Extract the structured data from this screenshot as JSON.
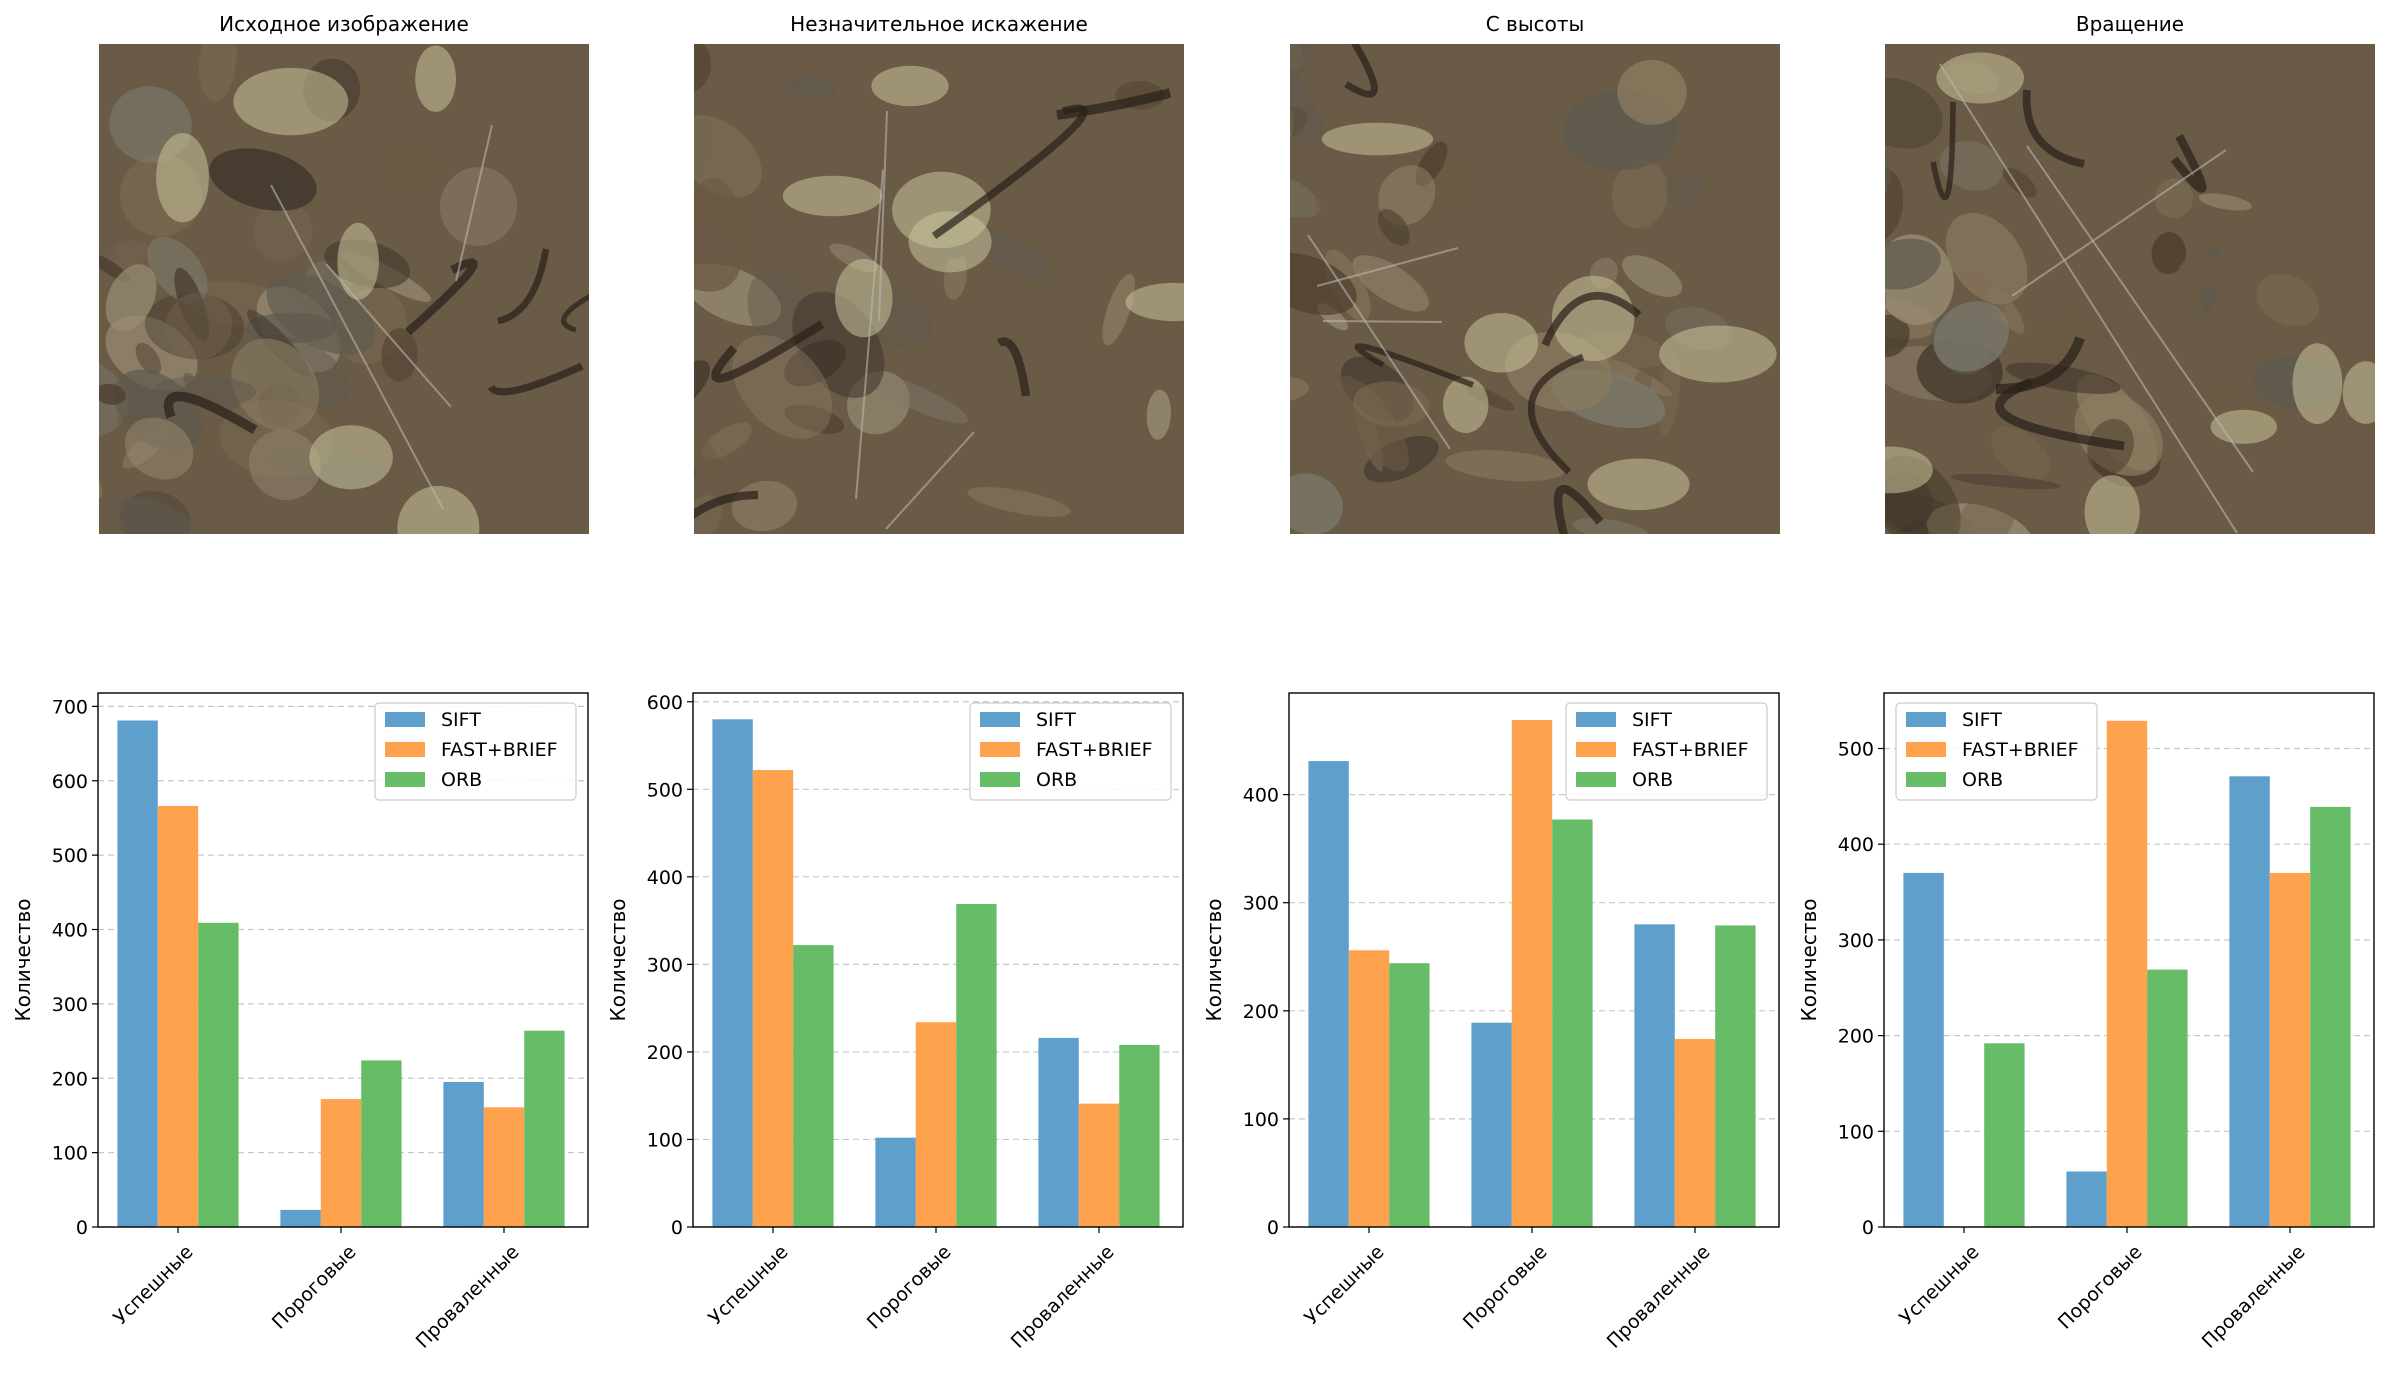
{
  "panels": [
    {
      "title": "Исходное изображение",
      "image": "satellite-original"
    },
    {
      "title": "Незначительное искажение",
      "image": "satellite-minor-distortion"
    },
    {
      "title": "С высоты",
      "image": "satellite-from-altitude"
    },
    {
      "title": "Вращение",
      "image": "satellite-rotation"
    }
  ],
  "colors": {
    "SIFT": "#5f9fcc",
    "FAST+BRIEF": "#ffa24e",
    "ORB": "#67bd67",
    "grid": "#c8c8c8"
  },
  "chart_data": [
    {
      "type": "bar",
      "categories": [
        "Успешные",
        "Пороговые",
        "Проваленные"
      ],
      "series": [
        {
          "name": "SIFT",
          "values": [
            681,
            23,
            195
          ]
        },
        {
          "name": "FAST+BRIEF",
          "values": [
            566,
            172,
            161
          ]
        },
        {
          "name": "ORB",
          "values": [
            409,
            224,
            264
          ]
        }
      ],
      "ylabel": "Количество",
      "ylim": [
        0,
        718
      ],
      "yticks": [
        0,
        100,
        200,
        300,
        400,
        500,
        600,
        700
      ],
      "legend": "upper right",
      "grid": "y-dashed"
    },
    {
      "type": "bar",
      "categories": [
        "Успешные",
        "Пороговые",
        "Проваленные"
      ],
      "series": [
        {
          "name": "SIFT",
          "values": [
            580,
            102,
            216
          ]
        },
        {
          "name": "FAST+BRIEF",
          "values": [
            522,
            234,
            141
          ]
        },
        {
          "name": "ORB",
          "values": [
            322,
            369,
            208
          ]
        }
      ],
      "ylabel": "Количество",
      "ylim": [
        0,
        610
      ],
      "yticks": [
        0,
        100,
        200,
        300,
        400,
        500,
        600
      ],
      "legend": "upper right",
      "grid": "y-dashed"
    },
    {
      "type": "bar",
      "categories": [
        "Успешные",
        "Пороговые",
        "Проваленные"
      ],
      "series": [
        {
          "name": "SIFT",
          "values": [
            431,
            189,
            280
          ]
        },
        {
          "name": "FAST+BRIEF",
          "values": [
            256,
            469,
            174
          ]
        },
        {
          "name": "ORB",
          "values": [
            244,
            377,
            279
          ]
        }
      ],
      "ylabel": "Количество",
      "ylim": [
        0,
        494
      ],
      "yticks": [
        0,
        100,
        200,
        300,
        400
      ],
      "legend": "upper right",
      "grid": "y-dashed"
    },
    {
      "type": "bar",
      "categories": [
        "Успешные",
        "Пороговые",
        "Проваленные"
      ],
      "series": [
        {
          "name": "SIFT",
          "values": [
            370,
            58,
            471
          ]
        },
        {
          "name": "FAST+BRIEF",
          "values": [
            0,
            529,
            370
          ]
        },
        {
          "name": "ORB",
          "values": [
            192,
            269,
            439
          ]
        }
      ],
      "ylabel": "Количество",
      "ylim": [
        0,
        558
      ],
      "yticks": [
        0,
        100,
        200,
        300,
        400,
        500
      ],
      "legend": "upper left",
      "grid": "y-dashed"
    }
  ]
}
